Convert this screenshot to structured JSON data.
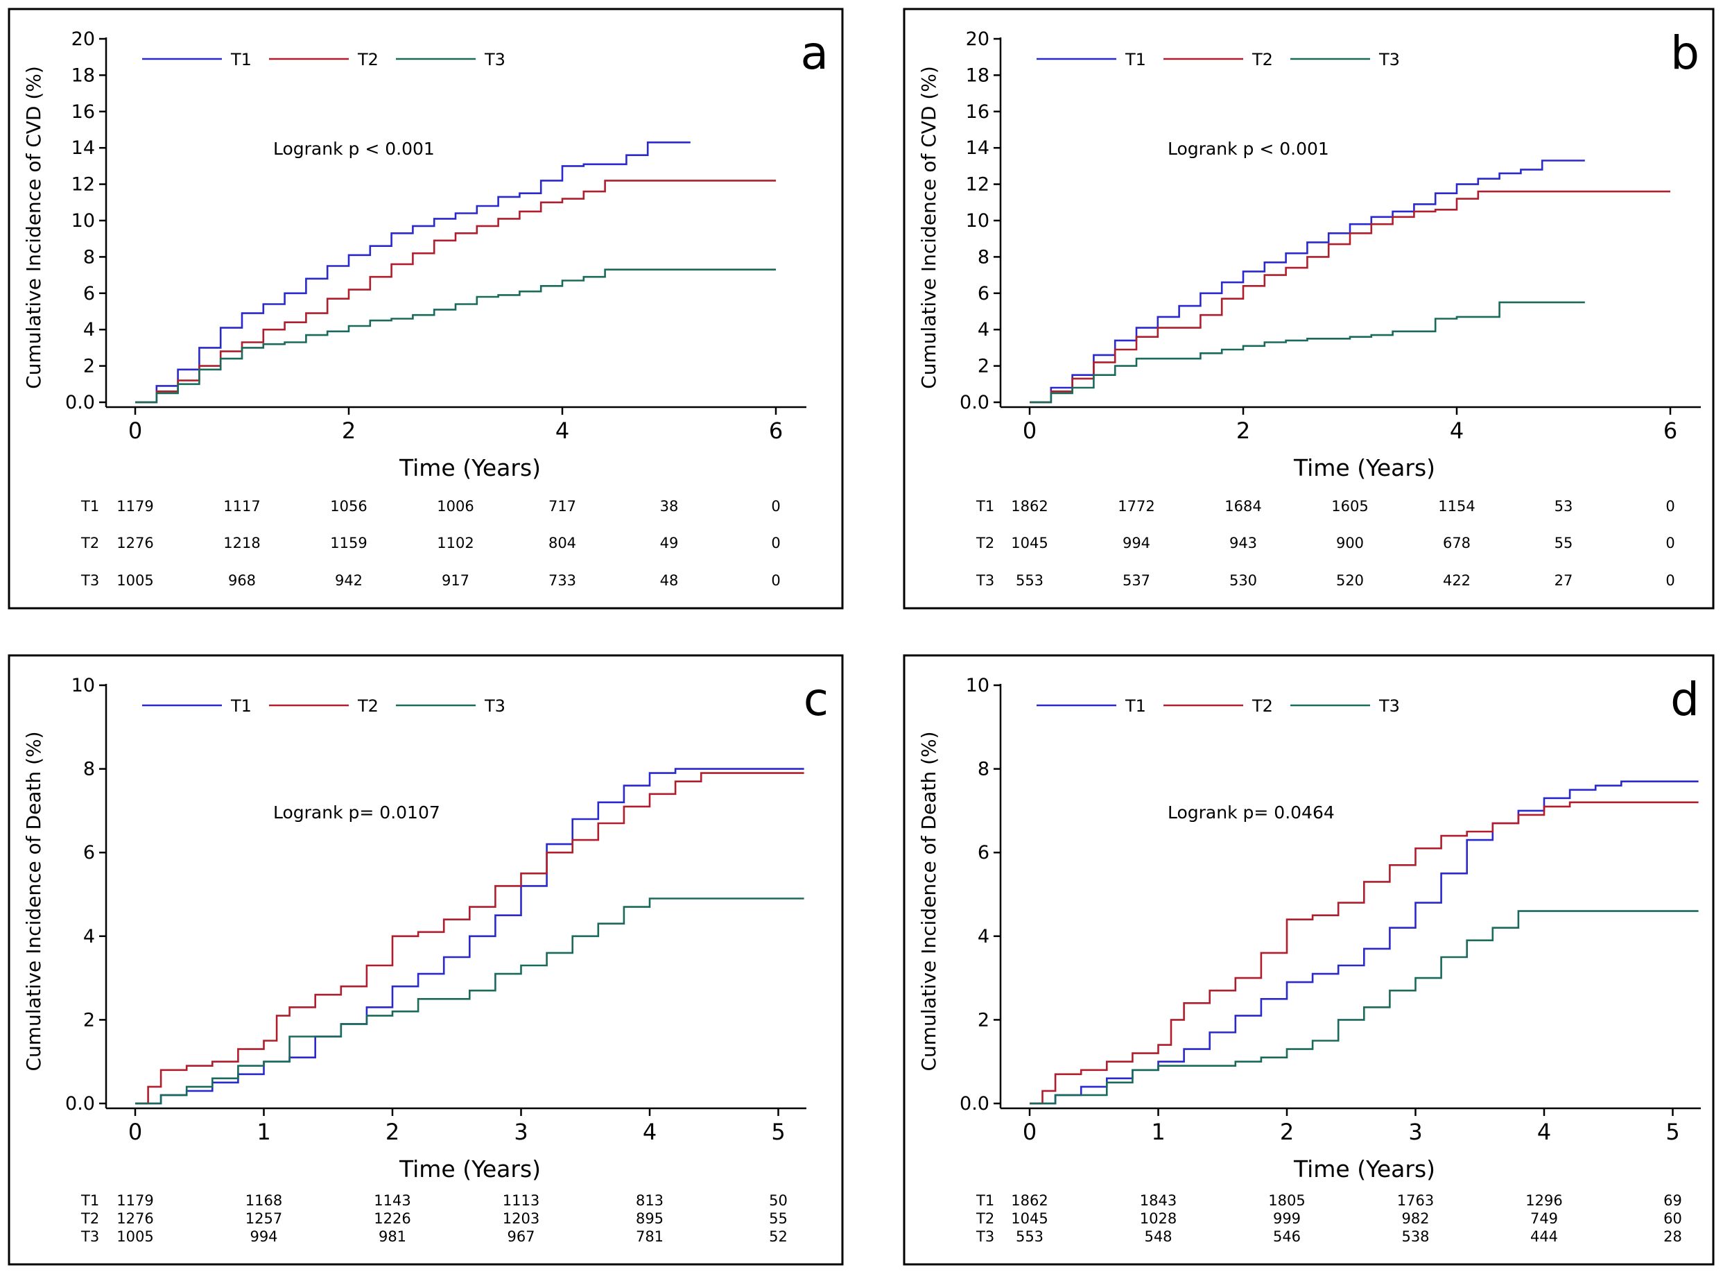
{
  "colors": {
    "T1": "#2929cc",
    "T2": "#b01e2d",
    "T3": "#1a6a5c"
  },
  "chart_data": [
    {
      "panel": "a",
      "type": "line",
      "step": true,
      "panel_letter": "a",
      "title": "",
      "xlabel": "Time (Years)",
      "ylabel": "Cumulative Incidence of CVD (%)",
      "xlim": [
        0,
        6
      ],
      "ylim": [
        0,
        20
      ],
      "x_ticks": [
        "0",
        "2",
        "4",
        "6"
      ],
      "x_tick_values": [
        0,
        2,
        4,
        6
      ],
      "y_ticks": [
        "0.0",
        "2",
        "4",
        "6",
        "8",
        "10",
        "12",
        "14",
        "16",
        "18",
        "20"
      ],
      "y_tick_values": [
        0,
        2,
        4,
        6,
        8,
        10,
        12,
        14,
        16,
        18,
        20
      ],
      "annotation": "Logrank p < 0.001",
      "legend": [
        "T1",
        "T2",
        "T3"
      ],
      "series": [
        {
          "name": "T1",
          "x": [
            0,
            0.2,
            0.4,
            0.6,
            0.8,
            1.0,
            1.2,
            1.4,
            1.6,
            1.8,
            2.0,
            2.2,
            2.4,
            2.6,
            2.8,
            3.0,
            3.2,
            3.4,
            3.6,
            3.8,
            4.0,
            4.2,
            4.4,
            4.6,
            4.8,
            5.2
          ],
          "y": [
            0,
            0.9,
            1.8,
            3.0,
            4.1,
            4.9,
            5.4,
            6.0,
            6.8,
            7.5,
            8.1,
            8.6,
            9.3,
            9.7,
            10.1,
            10.4,
            10.8,
            11.3,
            11.5,
            12.2,
            13.0,
            13.1,
            13.1,
            13.6,
            14.3,
            14.3
          ]
        },
        {
          "name": "T2",
          "x": [
            0,
            0.2,
            0.4,
            0.6,
            0.8,
            1.0,
            1.2,
            1.4,
            1.6,
            1.8,
            2.0,
            2.2,
            2.4,
            2.6,
            2.8,
            3.0,
            3.2,
            3.4,
            3.6,
            3.8,
            4.0,
            4.2,
            4.4,
            6.0
          ],
          "y": [
            0,
            0.6,
            1.2,
            2.0,
            2.8,
            3.3,
            4.0,
            4.4,
            4.9,
            5.7,
            6.2,
            6.9,
            7.6,
            8.2,
            8.9,
            9.3,
            9.7,
            10.1,
            10.5,
            11.0,
            11.2,
            11.6,
            12.2,
            12.2
          ]
        },
        {
          "name": "T3",
          "x": [
            0,
            0.2,
            0.4,
            0.6,
            0.8,
            1.0,
            1.2,
            1.4,
            1.6,
            1.8,
            2.0,
            2.2,
            2.4,
            2.6,
            2.8,
            3.0,
            3.2,
            3.4,
            3.6,
            3.8,
            4.0,
            4.2,
            4.4,
            6.0
          ],
          "y": [
            0,
            0.5,
            1.0,
            1.8,
            2.4,
            3.0,
            3.2,
            3.3,
            3.7,
            3.9,
            4.2,
            4.5,
            4.6,
            4.8,
            5.1,
            5.4,
            5.8,
            5.9,
            6.1,
            6.4,
            6.7,
            6.9,
            7.3,
            7.3
          ]
        }
      ],
      "risk_table": {
        "times": [
          0,
          1,
          2,
          3,
          4,
          5,
          6
        ],
        "rows": [
          {
            "label": "T1",
            "values": [
              "1179",
              "1117",
              "1056",
              "1006",
              "717",
              "38",
              "0"
            ]
          },
          {
            "label": "T2",
            "values": [
              "1276",
              "1218",
              "1159",
              "1102",
              "804",
              "49",
              "0"
            ]
          },
          {
            "label": "T3",
            "values": [
              "1005",
              "968",
              "942",
              "917",
              "733",
              "48",
              "0"
            ]
          }
        ]
      }
    },
    {
      "panel": "b",
      "type": "line",
      "step": true,
      "panel_letter": "b",
      "title": "",
      "xlabel": "Time (Years)",
      "ylabel": "Cumulative Incidence of CVD (%)",
      "xlim": [
        0,
        6
      ],
      "ylim": [
        0,
        20
      ],
      "x_ticks": [
        "0",
        "2",
        "4",
        "6"
      ],
      "x_tick_values": [
        0,
        2,
        4,
        6
      ],
      "y_ticks": [
        "0.0",
        "2",
        "4",
        "6",
        "8",
        "10",
        "12",
        "14",
        "16",
        "18",
        "20"
      ],
      "y_tick_values": [
        0,
        2,
        4,
        6,
        8,
        10,
        12,
        14,
        16,
        18,
        20
      ],
      "annotation": "Logrank p < 0.001",
      "legend": [
        "T1",
        "T2",
        "T3"
      ],
      "series": [
        {
          "name": "T1",
          "x": [
            0,
            0.2,
            0.4,
            0.6,
            0.8,
            1.0,
            1.2,
            1.4,
            1.6,
            1.8,
            2.0,
            2.2,
            2.4,
            2.6,
            2.8,
            3.0,
            3.2,
            3.4,
            3.6,
            3.8,
            4.0,
            4.2,
            4.4,
            4.6,
            4.8,
            5.2
          ],
          "y": [
            0,
            0.8,
            1.5,
            2.6,
            3.4,
            4.1,
            4.7,
            5.3,
            6.0,
            6.6,
            7.2,
            7.7,
            8.2,
            8.8,
            9.3,
            9.8,
            10.2,
            10.5,
            10.9,
            11.5,
            12.0,
            12.3,
            12.6,
            12.8,
            13.3,
            13.3
          ]
        },
        {
          "name": "T2",
          "x": [
            0,
            0.2,
            0.4,
            0.6,
            0.8,
            1.0,
            1.2,
            1.4,
            1.6,
            1.8,
            2.0,
            2.2,
            2.4,
            2.6,
            2.8,
            3.0,
            3.2,
            3.4,
            3.6,
            3.8,
            4.0,
            4.2,
            4.4,
            6.0
          ],
          "y": [
            0,
            0.6,
            1.3,
            2.2,
            2.9,
            3.6,
            4.1,
            4.1,
            4.8,
            5.7,
            6.4,
            7.0,
            7.4,
            8.0,
            8.7,
            9.3,
            9.8,
            10.2,
            10.5,
            10.6,
            11.2,
            11.6,
            11.6,
            11.6
          ]
        },
        {
          "name": "T3",
          "x": [
            0,
            0.2,
            0.4,
            0.6,
            0.8,
            1.0,
            1.2,
            1.4,
            1.6,
            1.8,
            2.0,
            2.2,
            2.4,
            2.6,
            2.8,
            3.0,
            3.2,
            3.4,
            3.6,
            3.8,
            4.0,
            4.2,
            4.4,
            5.2
          ],
          "y": [
            0,
            0.5,
            0.8,
            1.5,
            2.0,
            2.4,
            2.4,
            2.4,
            2.7,
            2.9,
            3.1,
            3.3,
            3.4,
            3.5,
            3.5,
            3.6,
            3.7,
            3.9,
            3.9,
            4.6,
            4.7,
            4.7,
            5.5,
            5.5
          ]
        }
      ],
      "risk_table": {
        "times": [
          0,
          1,
          2,
          3,
          4,
          5,
          6
        ],
        "rows": [
          {
            "label": "T1",
            "values": [
              "1862",
              "1772",
              "1684",
              "1605",
              "1154",
              "53",
              "0"
            ]
          },
          {
            "label": "T2",
            "values": [
              "1045",
              "994",
              "943",
              "900",
              "678",
              "55",
              "0"
            ]
          },
          {
            "label": "T3",
            "values": [
              "553",
              "537",
              "530",
              "520",
              "422",
              "27",
              "0"
            ]
          }
        ]
      }
    },
    {
      "panel": "c",
      "type": "line",
      "step": true,
      "panel_letter": "c",
      "title": "",
      "xlabel": "Time (Years)",
      "ylabel": "Cumulative Incidence of Death (%)",
      "xlim": [
        0,
        5.25
      ],
      "ylim": [
        0,
        10
      ],
      "x_ticks": [
        "0",
        "1",
        "2",
        "3",
        "4",
        "5"
      ],
      "x_tick_values": [
        0,
        1,
        2,
        3,
        4,
        5
      ],
      "y_ticks": [
        "0.0",
        "2",
        "4",
        "6",
        "8",
        "10"
      ],
      "y_tick_values": [
        0,
        2,
        4,
        6,
        8,
        10
      ],
      "annotation": "Logrank p= 0.0107",
      "legend": [
        "T1",
        "T2",
        "T3"
      ],
      "series": [
        {
          "name": "T1",
          "x": [
            0,
            0.2,
            0.4,
            0.6,
            0.8,
            1.0,
            1.2,
            1.4,
            1.6,
            1.8,
            2.0,
            2.2,
            2.4,
            2.6,
            2.8,
            3.0,
            3.2,
            3.4,
            3.6,
            3.8,
            4.0,
            4.2,
            4.4,
            4.6,
            5.2
          ],
          "y": [
            0,
            0.2,
            0.3,
            0.5,
            0.7,
            1.0,
            1.1,
            1.6,
            1.9,
            2.3,
            2.8,
            3.1,
            3.5,
            4.0,
            4.5,
            5.2,
            6.2,
            6.8,
            7.2,
            7.6,
            7.9,
            8.0,
            8.0,
            8.0,
            8.0
          ]
        },
        {
          "name": "T2",
          "x": [
            0,
            0.1,
            0.2,
            0.4,
            0.6,
            0.8,
            1.0,
            1.1,
            1.2,
            1.4,
            1.6,
            1.8,
            2.0,
            2.2,
            2.4,
            2.6,
            2.8,
            3.0,
            3.2,
            3.4,
            3.6,
            3.8,
            4.0,
            4.2,
            4.4,
            5.2
          ],
          "y": [
            0,
            0.4,
            0.8,
            0.9,
            1.0,
            1.3,
            1.5,
            2.1,
            2.3,
            2.6,
            2.8,
            3.3,
            4.0,
            4.1,
            4.4,
            4.7,
            5.2,
            5.5,
            6.0,
            6.3,
            6.7,
            7.1,
            7.4,
            7.7,
            7.9,
            7.9
          ]
        },
        {
          "name": "T3",
          "x": [
            0,
            0.2,
            0.4,
            0.6,
            0.8,
            1.0,
            1.2,
            1.4,
            1.6,
            1.8,
            2.0,
            2.2,
            2.4,
            2.6,
            2.8,
            3.0,
            3.2,
            3.4,
            3.6,
            3.8,
            4.0,
            4.2,
            4.4,
            4.6,
            5.2
          ],
          "y": [
            0,
            0.2,
            0.4,
            0.6,
            0.9,
            1.0,
            1.6,
            1.6,
            1.9,
            2.1,
            2.2,
            2.5,
            2.5,
            2.7,
            3.1,
            3.3,
            3.6,
            4.0,
            4.3,
            4.7,
            4.9,
            4.9,
            4.9,
            4.9,
            4.9
          ]
        }
      ],
      "risk_table": {
        "times": [
          0,
          1,
          2,
          3,
          4,
          5
        ],
        "rows": [
          {
            "label": "T1",
            "values": [
              "1179",
              "1168",
              "1143",
              "1113",
              "813",
              "50"
            ]
          },
          {
            "label": "T2",
            "values": [
              "1276",
              "1257",
              "1226",
              "1203",
              "895",
              "55"
            ]
          },
          {
            "label": "T3",
            "values": [
              "1005",
              "994",
              "981",
              "967",
              "781",
              "52"
            ]
          }
        ]
      }
    },
    {
      "panel": "d",
      "type": "line",
      "step": true,
      "panel_letter": "d",
      "title": "",
      "xlabel": "Time (Years)",
      "ylabel": "Cumulative Incidence of Death (%)",
      "xlim": [
        0,
        5.25
      ],
      "ylim": [
        0,
        10
      ],
      "x_ticks": [
        "0",
        "1",
        "2",
        "3",
        "4",
        "5"
      ],
      "x_tick_values": [
        0,
        1,
        2,
        3,
        4,
        5
      ],
      "y_ticks": [
        "0.0",
        "2",
        "4",
        "6",
        "8",
        "10"
      ],
      "y_tick_values": [
        0,
        2,
        4,
        6,
        8,
        10
      ],
      "annotation": "Logrank p= 0.0464",
      "legend": [
        "T1",
        "T2",
        "T3"
      ],
      "series": [
        {
          "name": "T1",
          "x": [
            0,
            0.2,
            0.4,
            0.6,
            0.8,
            1.0,
            1.2,
            1.4,
            1.6,
            1.8,
            2.0,
            2.2,
            2.4,
            2.6,
            2.8,
            3.0,
            3.2,
            3.4,
            3.6,
            3.8,
            4.0,
            4.2,
            4.4,
            4.6,
            5.2
          ],
          "y": [
            0,
            0.2,
            0.4,
            0.6,
            0.8,
            1.0,
            1.3,
            1.7,
            2.1,
            2.5,
            2.9,
            3.1,
            3.3,
            3.7,
            4.2,
            4.8,
            5.5,
            6.3,
            6.7,
            7.0,
            7.3,
            7.5,
            7.6,
            7.7,
            7.7
          ]
        },
        {
          "name": "T2",
          "x": [
            0,
            0.1,
            0.2,
            0.4,
            0.6,
            0.8,
            1.0,
            1.1,
            1.2,
            1.4,
            1.6,
            1.8,
            2.0,
            2.2,
            2.4,
            2.6,
            2.8,
            3.0,
            3.2,
            3.4,
            3.6,
            3.8,
            4.0,
            4.2,
            5.2
          ],
          "y": [
            0,
            0.3,
            0.7,
            0.8,
            1.0,
            1.2,
            1.4,
            2.0,
            2.4,
            2.7,
            3.0,
            3.6,
            4.4,
            4.5,
            4.8,
            5.3,
            5.7,
            6.1,
            6.4,
            6.5,
            6.7,
            6.9,
            7.1,
            7.2,
            7.2
          ]
        },
        {
          "name": "T3",
          "x": [
            0,
            0.2,
            0.4,
            0.6,
            0.8,
            1.0,
            1.2,
            1.4,
            1.6,
            1.8,
            2.0,
            2.2,
            2.4,
            2.6,
            2.8,
            3.0,
            3.2,
            3.4,
            3.6,
            3.8,
            4.0,
            4.2,
            5.2
          ],
          "y": [
            0,
            0.2,
            0.2,
            0.5,
            0.8,
            0.9,
            0.9,
            0.9,
            1.0,
            1.1,
            1.3,
            1.5,
            2.0,
            2.3,
            2.7,
            3.0,
            3.5,
            3.9,
            4.2,
            4.6,
            4.6,
            4.6,
            4.6
          ]
        }
      ],
      "risk_table": {
        "times": [
          0,
          1,
          2,
          3,
          4,
          5
        ],
        "rows": [
          {
            "label": "T1",
            "values": [
              "1862",
              "1843",
              "1805",
              "1763",
              "1296",
              "69"
            ]
          },
          {
            "label": "T2",
            "values": [
              "1045",
              "1028",
              "999",
              "982",
              "749",
              "60"
            ]
          },
          {
            "label": "T3",
            "values": [
              "553",
              "548",
              "546",
              "538",
              "444",
              "28"
            ]
          }
        ]
      }
    }
  ]
}
